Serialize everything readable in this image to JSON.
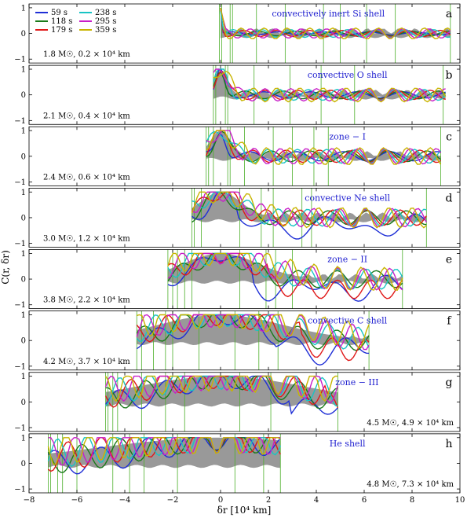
{
  "chart_data": {
    "type": "line",
    "xlabel": "δr [10⁴ km]",
    "ylabel": "C(r, δr)",
    "xlim": [
      -8,
      10
    ],
    "ylim": [
      -1.15,
      1.15
    ],
    "xticks": [
      -8,
      -6,
      -4,
      -2,
      0,
      2,
      4,
      6,
      8,
      10
    ],
    "yticks": [
      -1,
      0,
      1
    ],
    "legend": {
      "placement": "top-left",
      "entries": [
        {
          "label": "59 s",
          "color": "#1f2fd6"
        },
        {
          "label": "118 s",
          "color": "#1a7a1a"
        },
        {
          "label": "179 s",
          "color": "#e01818"
        },
        {
          "label": "238 s",
          "color": "#19c4c4"
        },
        {
          "label": "295 s",
          "color": "#c81ec8"
        },
        {
          "label": "359 s",
          "color": "#c8b400"
        }
      ]
    },
    "panels": [
      {
        "letter": "a",
        "title": "convectively inert Si shell",
        "info": "1.8 M☉, 0.2 × 10⁴ km",
        "info_pos": "left",
        "xmin": 0,
        "xmax": 9.6,
        "gray_max": 0.08,
        "peak": 0.1,
        "vlines": [
          -0.05,
          0.05,
          0.4,
          0.5,
          1.5,
          2.7,
          4.3,
          5.0,
          6.1,
          7.3,
          9.6
        ]
      },
      {
        "letter": "b",
        "title": "convective O shell",
        "info": "2.1 M☉, 0.4 × 10⁴ km",
        "info_pos": "left",
        "xmin": -0.3,
        "xmax": 9.4,
        "gray_max": 0.55,
        "peak": 0.4,
        "vlines": [
          -0.3,
          -0.2,
          0.2,
          0.3,
          1.4,
          2.9,
          4.2,
          5.6,
          9.3
        ]
      },
      {
        "letter": "c",
        "title": "zone − I",
        "info": "2.4 M☉, 0.6 × 10⁴ km",
        "info_pos": "left",
        "xmin": -0.6,
        "xmax": 9.2,
        "gray_max": 0.8,
        "peak": 0.6,
        "vlines": [
          -0.6,
          -0.5,
          -0.3,
          0.3,
          0.4,
          1.0,
          2.2,
          3.0,
          3.9,
          4.5,
          9.2
        ]
      },
      {
        "letter": "d",
        "title": "convective Ne shell",
        "info": "3.0 M☉, 1.2 × 10⁴ km",
        "info_pos": "left",
        "xmin": -1.2,
        "xmax": 8.6,
        "gray_max": 1.2,
        "peak": 1.2,
        "vlines": [
          -1.2,
          -1.1,
          -0.8,
          0.8,
          1.7,
          2.2,
          3.4,
          3.8,
          8.6
        ]
      },
      {
        "letter": "e",
        "title": "zone − II",
        "info": "3.8 M☉, 2.2 × 10⁴ km",
        "info_pos": "left",
        "xmin": -2.2,
        "xmax": 7.6,
        "gray_max": 2.2,
        "peak": 2.2,
        "vlines": [
          -2.2,
          -2.0,
          -1.8,
          -1.5,
          -1.2,
          0.8,
          1.9,
          2.3,
          3.0,
          7.6
        ]
      },
      {
        "letter": "f",
        "title": "convective C shell",
        "info": "4.2 M☉, 3.7 × 10⁴ km",
        "info_pos": "left",
        "xmin": -3.5,
        "xmax": 6.2,
        "gray_max": 3.6,
        "peak": 3.7,
        "vlines": [
          -3.5,
          -3.3,
          -2.8,
          -2.3,
          -2.0,
          -0.9,
          0.6,
          1.6,
          2.4,
          6.2
        ]
      },
      {
        "letter": "g",
        "title": "zone − III",
        "info": "4.5 M☉, 4.9 × 10⁴ km",
        "info_pos": "right",
        "xmin": -4.8,
        "xmax": 4.9,
        "gray_max": 4.9,
        "peak": 4.9,
        "vlines": [
          -4.8,
          -4.7,
          -4.5,
          -4.3,
          -3.3,
          -2.3,
          -1.5,
          0.8,
          2.1,
          4.9
        ]
      },
      {
        "letter": "h",
        "title": "He shell",
        "info": "4.8 M☉, 7.3 × 10⁴ km",
        "info_pos": "right",
        "xmin": -7.2,
        "xmax": 2.5,
        "gray_max": 7.3,
        "peak": 7.3,
        "vlines": [
          -7.2,
          -7.1,
          -6.8,
          -6.6,
          -6.0,
          -4.5,
          -3.8,
          -3.2,
          -1.8,
          0.6,
          1.8,
          2.5
        ]
      }
    ]
  }
}
